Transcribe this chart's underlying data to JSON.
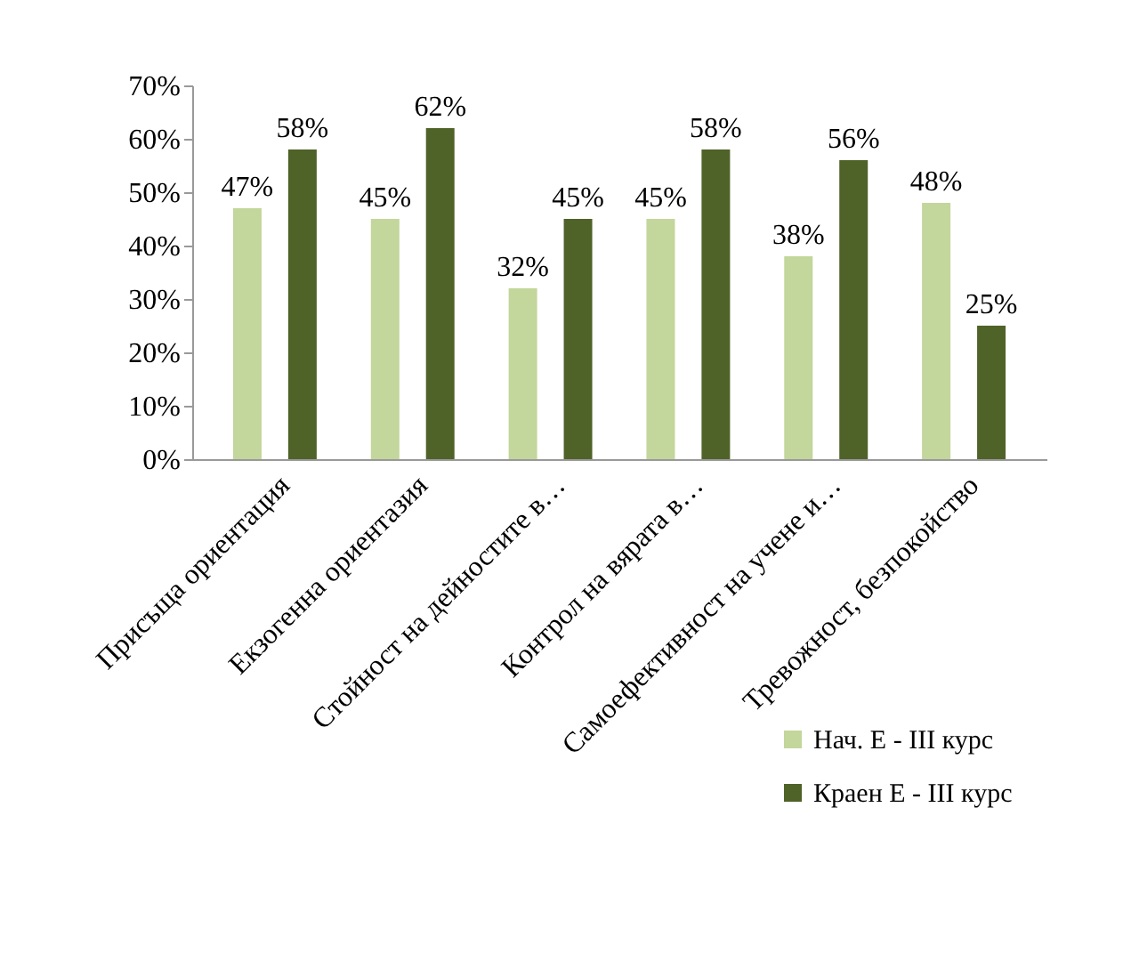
{
  "chart_data": {
    "type": "bar",
    "categories": [
      "Присъща ориентация",
      "Екзогенна ориентазия",
      "Стойност на дейностите в…",
      "Контрол на вярата в…",
      "Самоефективност на учене и…",
      "Тревожност, безпокойство"
    ],
    "series": [
      {
        "name": "Нач. Е - III курс",
        "color": "#c3d69b",
        "values": [
          47,
          45,
          32,
          45,
          38,
          48
        ],
        "value_labels": [
          "47%",
          "45%",
          "32%",
          "45%",
          "38%",
          "48%"
        ]
      },
      {
        "name": "Краен Е - III курс",
        "color": "#4f6228",
        "values": [
          58,
          62,
          45,
          58,
          56,
          25
        ],
        "value_labels": [
          "58%",
          "62%",
          "45%",
          "58%",
          "56%",
          "25%"
        ]
      }
    ],
    "ylim": [
      0,
      70
    ],
    "yticks": [
      {
        "value": 0,
        "label": "0%"
      },
      {
        "value": 10,
        "label": "10%"
      },
      {
        "value": 20,
        "label": "20%"
      },
      {
        "value": 30,
        "label": "30%"
      },
      {
        "value": 40,
        "label": "40%"
      },
      {
        "value": 50,
        "label": "50%"
      },
      {
        "value": 60,
        "label": "60%"
      },
      {
        "value": 70,
        "label": "70%"
      }
    ],
    "legend": "bottom right"
  }
}
